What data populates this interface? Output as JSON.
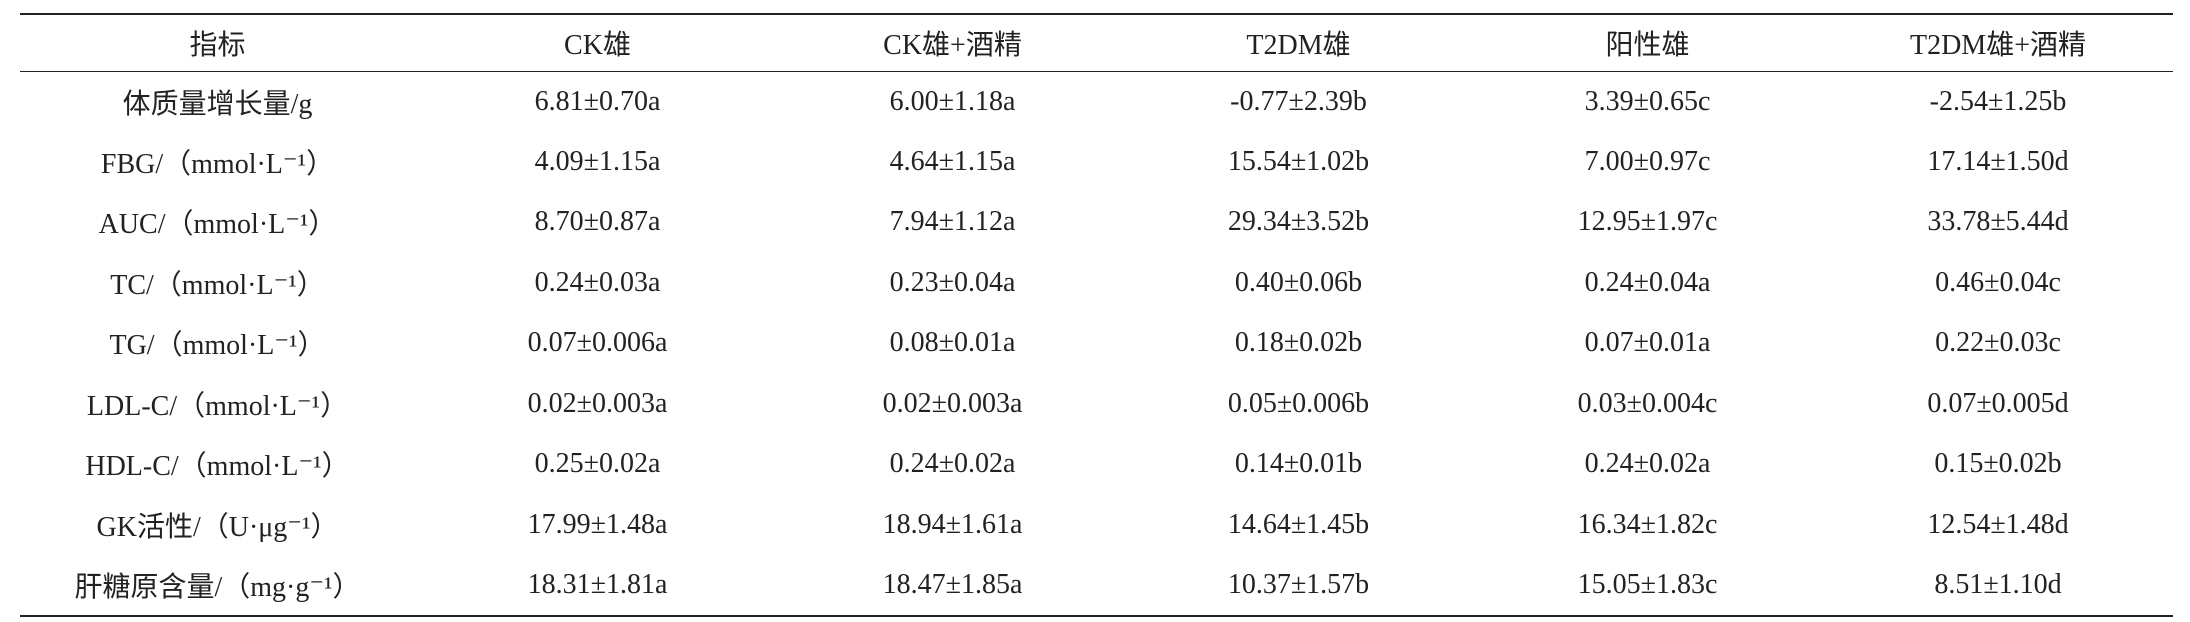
{
  "table": {
    "header": [
      "指标",
      "CK雄",
      "CK雄+酒精",
      "T2DM雄",
      "阳性雄",
      "T2DM雄+酒精"
    ],
    "rows": [
      [
        "体质量增长量/g",
        "6.81±0.70a",
        "6.00±1.18a",
        "-0.77±2.39b",
        "3.39±0.65c",
        "-2.54±1.25b"
      ],
      [
        "FBG/（mmol·L⁻¹）",
        "4.09±1.15a",
        "4.64±1.15a",
        "15.54±1.02b",
        "7.00±0.97c",
        "17.14±1.50d"
      ],
      [
        "AUC/（mmol·L⁻¹）",
        "8.70±0.87a",
        "7.94±1.12a",
        "29.34±3.52b",
        "12.95±1.97c",
        "33.78±5.44d"
      ],
      [
        "TC/（mmol·L⁻¹）",
        "0.24±0.03a",
        "0.23±0.04a",
        "0.40±0.06b",
        "0.24±0.04a",
        "0.46±0.04c"
      ],
      [
        "TG/（mmol·L⁻¹）",
        "0.07±0.006a",
        "0.08±0.01a",
        "0.18±0.02b",
        "0.07±0.01a",
        "0.22±0.03c"
      ],
      [
        "LDL-C/（mmol·L⁻¹）",
        "0.02±0.003a",
        "0.02±0.003a",
        "0.05±0.006b",
        "0.03±0.004c",
        "0.07±0.005d"
      ],
      [
        "HDL-C/（mmol·L⁻¹）",
        "0.25±0.02a",
        "0.24±0.02a",
        "0.14±0.01b",
        "0.24±0.02a",
        "0.15±0.02b"
      ],
      [
        "GK活性/（U·μg⁻¹）",
        "17.99±1.48a",
        "18.94±1.61a",
        "14.64±1.45b",
        "16.34±1.82c",
        "12.54±1.48d"
      ],
      [
        "肝糖原含量/（mg·g⁻¹）",
        "18.31±1.81a",
        "18.47±1.85a",
        "10.37±1.57b",
        "15.05±1.83c",
        "8.51±1.10d"
      ]
    ]
  }
}
